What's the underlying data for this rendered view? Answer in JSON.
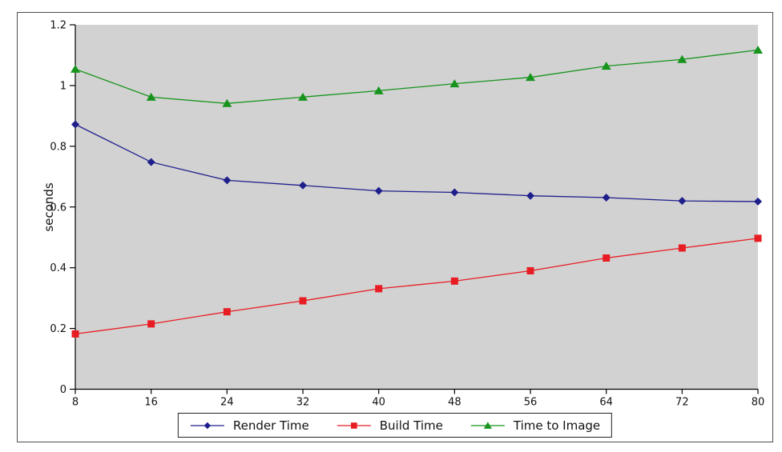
{
  "chart_data": {
    "type": "line",
    "title": "",
    "xlabel": "",
    "ylabel": "seconds",
    "grid": false,
    "plot_background": "#d2d2d2",
    "axis_color": "#000000",
    "frame_border_color": "#4d4d4d",
    "legend_position": "bottom-center",
    "xlim": [
      8,
      80
    ],
    "ylim": [
      0,
      1.2
    ],
    "x": [
      8,
      16,
      24,
      32,
      40,
      48,
      56,
      64,
      72,
      80
    ],
    "xticks": [
      8,
      16,
      24,
      32,
      40,
      48,
      56,
      64,
      72,
      80
    ],
    "xtick_labels": [
      "8",
      "16",
      "24",
      "32",
      "40",
      "48",
      "56",
      "64",
      "72",
      "80"
    ],
    "yticks": [
      0,
      0.2,
      0.4,
      0.6,
      0.8,
      1,
      1.2
    ],
    "ytick_labels": [
      "0",
      "0.2",
      "0.4",
      "0.6",
      "0.8",
      "1",
      "1.2"
    ],
    "series": [
      {
        "name": "Render Time",
        "color": "#1f1f8c",
        "marker": "diamond",
        "values": [
          0.872,
          0.748,
          0.688,
          0.671,
          0.653,
          0.648,
          0.637,
          0.631,
          0.62,
          0.618
        ]
      },
      {
        "name": "Build Time",
        "color": "#e81d23",
        "marker": "square",
        "values": [
          0.182,
          0.215,
          0.255,
          0.291,
          0.331,
          0.356,
          0.39,
          0.432,
          0.465,
          0.497
        ]
      },
      {
        "name": "Time to Image",
        "color": "#16941c",
        "marker": "triangle",
        "values": [
          1.054,
          0.962,
          0.941,
          0.962,
          0.983,
          1.006,
          1.027,
          1.064,
          1.086,
          1.117
        ]
      }
    ]
  }
}
